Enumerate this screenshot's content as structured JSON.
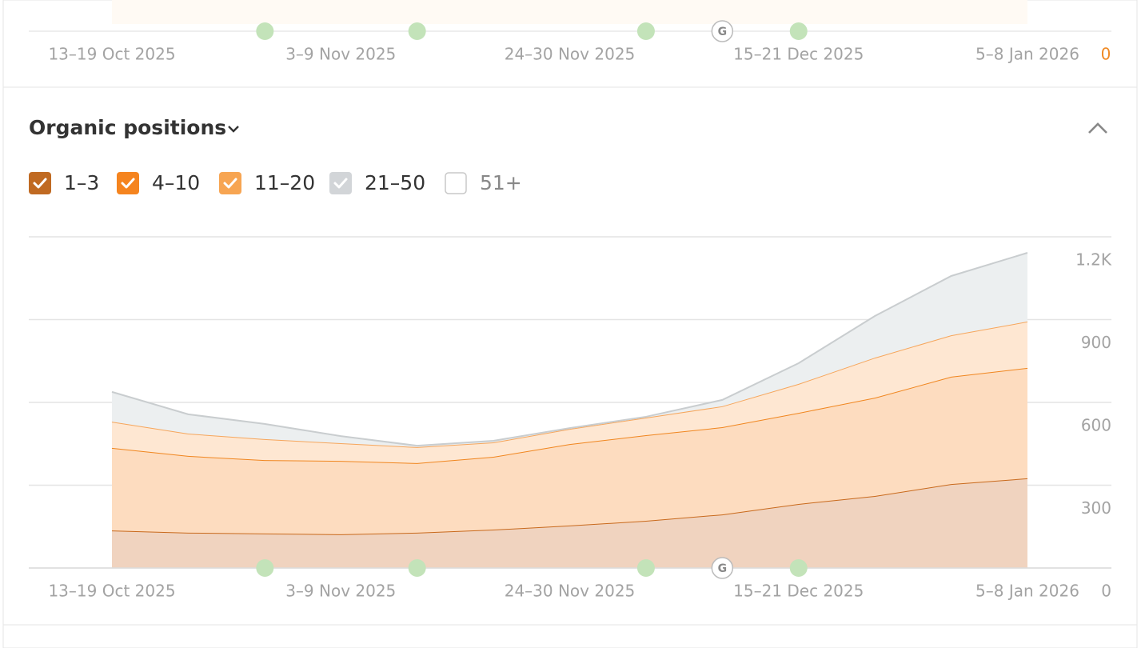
{
  "previous_panel": {
    "x_labels": [
      "13–19 Oct 2025",
      "3–9 Nov 2025",
      "24–30 Nov 2025",
      "15–21 Dec 2025",
      "5–8 Jan 2026"
    ],
    "y_label": "0"
  },
  "section": {
    "title": "Organic positions"
  },
  "chart_data": {
    "type": "stacked-area",
    "categories": [
      "13–19 Oct 2025",
      null,
      null,
      "3–9 Nov 2025",
      null,
      null,
      "24–30 Nov 2025",
      null,
      null,
      "15–21 Dec 2025",
      null,
      null,
      "5–8 Jan 2026"
    ],
    "series": [
      {
        "name": "1–3",
        "color": "#c8691c",
        "fill": "#f0d3bf",
        "values": [
          136,
          128,
          125,
          122,
          128,
          139,
          154,
          171,
          194,
          232,
          261,
          304,
          325
        ]
      },
      {
        "name": "4–10",
        "color": "#f0861f",
        "fill": "#fddcbf",
        "values": [
          299,
          278,
          266,
          266,
          252,
          264,
          295,
          310,
          316,
          330,
          356,
          389,
          400
        ]
      },
      {
        "name": "11–20",
        "color": "#f6a65c",
        "fill": "#fee7d2",
        "values": [
          95,
          81,
          76,
          64,
          58,
          52,
          55,
          64,
          76,
          105,
          145,
          150,
          168
        ]
      },
      {
        "name": "21–50",
        "color": "#c9cdcf",
        "fill": "#eceff0",
        "values": [
          108,
          70,
          55,
          26,
          5,
          6,
          3,
          3,
          23,
          75,
          151,
          215,
          249
        ]
      }
    ],
    "hidden_series": [
      {
        "name": "51+"
      }
    ],
    "ylim": [
      0,
      1200
    ],
    "yticks": [
      0,
      300,
      600,
      900,
      {
        "value": 1200,
        "label": "1.2K"
      }
    ],
    "grid": true,
    "annotations": [
      {
        "label": "G"
      }
    ]
  }
}
